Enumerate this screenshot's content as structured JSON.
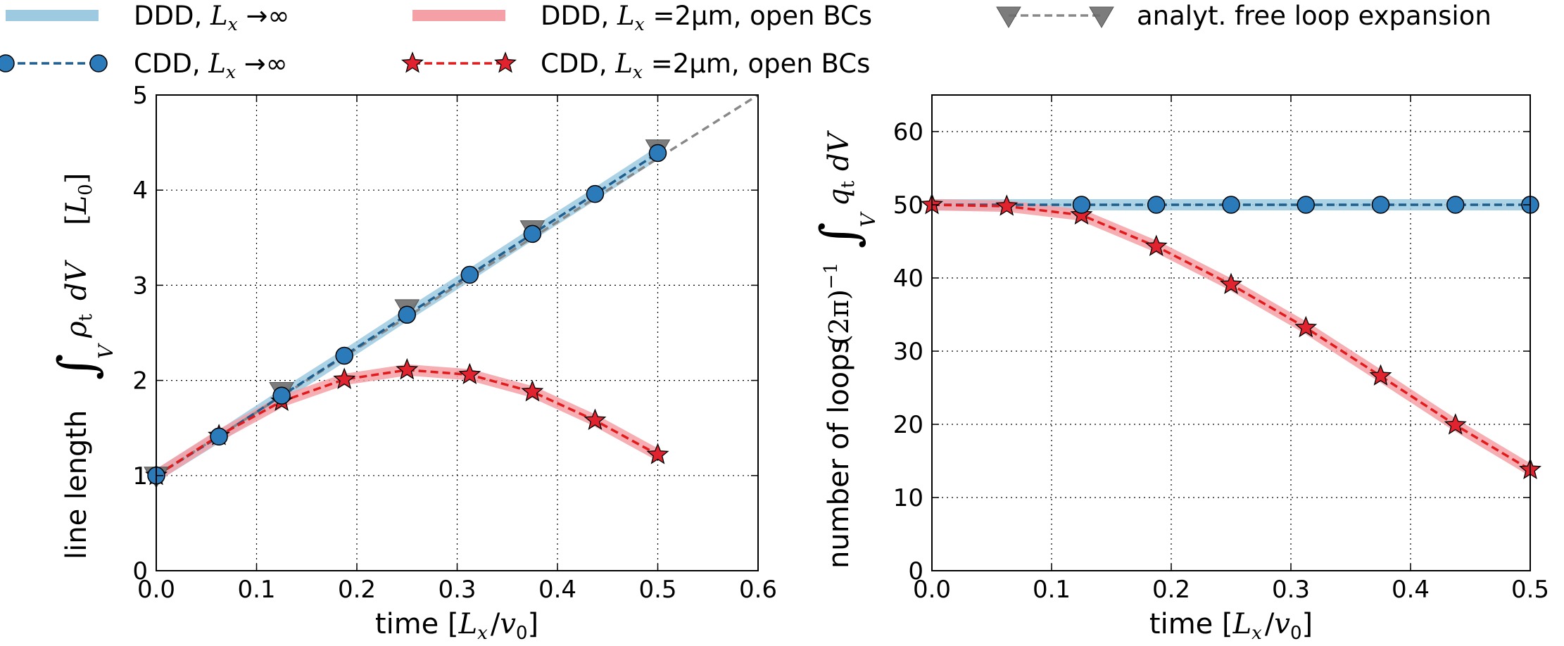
{
  "chart_data": [
    {
      "type": "line",
      "panel": "left",
      "xlabel": "time [L_x / v_0]",
      "xlabel_prefix": "time [",
      "xlabel_math": "L",
      "xlabel_sub": "x",
      "xlabel_mid": "/",
      "xlabel_math2": "v",
      "xlabel_sub2": "0",
      "xlabel_suffix": "]",
      "ylabel": "line length ∫_V ρ_t dV [L_0]",
      "ylabel_text": "line length",
      "ylabel_integral": "∫",
      "ylabel_sub_V": "V",
      "ylabel_rho": "ρ",
      "ylabel_rho_sub": "t",
      "ylabel_dV": "dV",
      "ylabel_unit_open": "[",
      "ylabel_unit_L": "L",
      "ylabel_unit_sub": "0",
      "ylabel_unit_close": "]",
      "xlim": [
        0.0,
        0.6
      ],
      "ylim": [
        0,
        5
      ],
      "xticks": [
        "0.0",
        "0.1",
        "0.2",
        "0.3",
        "0.4",
        "0.5",
        "0.6"
      ],
      "yticks": [
        "0",
        "1",
        "2",
        "3",
        "4",
        "5"
      ],
      "grid": true,
      "series": [
        {
          "name": "DDD, L_x → ∞",
          "style": "band-blue",
          "x": [
            0.0,
            0.0625,
            0.125,
            0.1875,
            0.25,
            0.3125,
            0.375,
            0.4375,
            0.5
          ],
          "y": [
            1.0,
            1.41,
            1.84,
            2.26,
            2.69,
            3.11,
            3.54,
            3.96,
            4.39
          ]
        },
        {
          "name": "DDD, L_x = 2μm, open BCs",
          "style": "band-red",
          "x": [
            0.0,
            0.0625,
            0.125,
            0.1875,
            0.25,
            0.3125,
            0.375,
            0.4375,
            0.5
          ],
          "y": [
            1.0,
            1.42,
            1.78,
            2.01,
            2.11,
            2.06,
            1.88,
            1.58,
            1.22
          ]
        },
        {
          "name": "analyt. free loop expansion",
          "style": "dashed-grey-triangles",
          "x": [
            0.0,
            0.6
          ],
          "y": [
            1.0,
            5.0
          ],
          "marker_x": [
            0.0,
            0.125,
            0.25,
            0.375,
            0.5
          ],
          "marker_y": [
            1.0,
            1.89,
            2.76,
            3.59,
            4.44
          ]
        },
        {
          "name": "CDD, L_x → ∞",
          "style": "dashed-blue-circles",
          "x": [
            0.0,
            0.0625,
            0.125,
            0.1875,
            0.25,
            0.3125,
            0.375,
            0.4375,
            0.5
          ],
          "y": [
            1.0,
            1.41,
            1.84,
            2.26,
            2.69,
            3.11,
            3.54,
            3.96,
            4.39
          ]
        },
        {
          "name": "CDD, L_x = 2μm, open BCs",
          "style": "dashed-red-stars",
          "x": [
            0.0,
            0.0625,
            0.125,
            0.1875,
            0.25,
            0.3125,
            0.375,
            0.4375,
            0.5
          ],
          "y": [
            1.0,
            1.42,
            1.78,
            2.01,
            2.11,
            2.06,
            1.88,
            1.58,
            1.22
          ]
        }
      ]
    },
    {
      "type": "line",
      "panel": "right",
      "xlabel": "time [L_x / v_0]",
      "xlabel_prefix": "time [",
      "xlabel_math": "L",
      "xlabel_sub": "x",
      "xlabel_mid": "/",
      "xlabel_math2": "v",
      "xlabel_sub2": "0",
      "xlabel_suffix": "]",
      "ylabel": "number of loops (2π)^-1 ∫_V q_t dV",
      "ylabel_text": "number of loops",
      "ylabel_paren": "(2π)",
      "ylabel_exp": "−1",
      "ylabel_integral": "∫",
      "ylabel_sub_V": "V",
      "ylabel_q": "q",
      "ylabel_q_sub": "t",
      "ylabel_dV": "dV",
      "xlim": [
        0.0,
        0.5
      ],
      "ylim": [
        0,
        65
      ],
      "xticks": [
        "0.0",
        "0.1",
        "0.2",
        "0.3",
        "0.4",
        "0.5"
      ],
      "yticks": [
        "0",
        "10",
        "20",
        "30",
        "40",
        "50",
        "60"
      ],
      "grid": true,
      "series": [
        {
          "name": "DDD, L_x → ∞",
          "style": "band-blue",
          "x": [
            0.0,
            0.0625,
            0.125,
            0.1875,
            0.25,
            0.3125,
            0.375,
            0.4375,
            0.5
          ],
          "y": [
            50,
            50,
            50,
            50,
            50,
            50,
            50,
            50,
            50
          ]
        },
        {
          "name": "DDD, L_x = 2μm, open BCs",
          "style": "band-red",
          "x": [
            0.0,
            0.0625,
            0.125,
            0.1875,
            0.25,
            0.3125,
            0.375,
            0.4375,
            0.5
          ],
          "y": [
            50,
            49.8,
            48.6,
            44.3,
            39.1,
            33.2,
            26.6,
            19.9,
            13.8
          ]
        },
        {
          "name": "CDD, L_x → ∞",
          "style": "dashed-blue-circles",
          "x": [
            0.0,
            0.0625,
            0.125,
            0.1875,
            0.25,
            0.3125,
            0.375,
            0.4375,
            0.5
          ],
          "y": [
            50,
            50,
            50,
            50,
            50,
            50,
            50,
            50,
            50
          ]
        },
        {
          "name": "CDD, L_x = 2μm, open BCs",
          "style": "dashed-red-stars",
          "x": [
            0.0,
            0.0625,
            0.125,
            0.1875,
            0.25,
            0.3125,
            0.375,
            0.4375,
            0.5
          ],
          "y": [
            50,
            49.8,
            48.6,
            44.3,
            39.1,
            33.2,
            26.6,
            19.9,
            13.8
          ]
        }
      ]
    }
  ],
  "legend": {
    "placement": "top",
    "entries": [
      {
        "id": "ddd-inf",
        "style": "band-blue",
        "prefix": "DDD, ",
        "math": "L",
        "sub": "x",
        "rest": " →∞",
        "suffix": ""
      },
      {
        "id": "ddd-2um",
        "style": "band-red",
        "prefix": "DDD, ",
        "math": "L",
        "sub": "x",
        "rest": " =2μm",
        "suffix": ", open BCs"
      },
      {
        "id": "analyt",
        "style": "dashed-grey-triangles",
        "prefix": "analyt. free loop expansion",
        "math": "",
        "sub": "",
        "rest": "",
        "suffix": ""
      },
      {
        "id": "cdd-inf",
        "style": "dashed-blue-circles",
        "prefix": "CDD, ",
        "math": "L",
        "sub": "x",
        "rest": " →∞",
        "suffix": ""
      },
      {
        "id": "cdd-2um",
        "style": "dashed-red-stars",
        "prefix": "CDD, ",
        "math": "L",
        "sub": "x",
        "rest": " =2μm",
        "suffix": ", open BCs"
      }
    ]
  },
  "colors": {
    "band_blue": "#9ecae1",
    "band_red": "#f4a0a6",
    "dash_blue": "#1f5f8f",
    "dash_red": "#e31a1c",
    "circle_fill": "#2b7bba",
    "star_fill": "#e0232e",
    "triangle_fill": "#6e6e6e",
    "dash_grey": "#888888",
    "grid": "#000000"
  }
}
